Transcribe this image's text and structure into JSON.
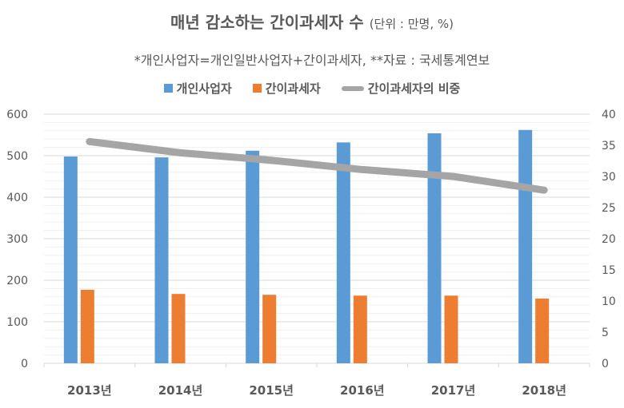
{
  "chart_data": {
    "type": "bar+line",
    "title": "매년 감소하는 간이과세자 수",
    "title_unit": "(단위 : 만명, %)",
    "subtitle": "*개인사업자=개인일반사업자+간이과세자, **자료 : 국세통계연보",
    "categories": [
      "2013년",
      "2014년",
      "2015년",
      "2016년",
      "2017년",
      "2018년"
    ],
    "series": [
      {
        "name": "개인사업자",
        "type": "bar",
        "axis": "left",
        "color": "#5B9BD5",
        "values": [
          498,
          496,
          512,
          532,
          554,
          562
        ]
      },
      {
        "name": "간이과세자",
        "type": "bar",
        "axis": "left",
        "color": "#ED7D31",
        "values": [
          177,
          167,
          165,
          163,
          163,
          156
        ]
      },
      {
        "name": "간이과세자의 비중",
        "type": "line",
        "axis": "right",
        "color": "#A5A5A5",
        "values": [
          35.6,
          33.8,
          32.6,
          31.1,
          30.0,
          27.8
        ]
      }
    ],
    "left_axis": {
      "ylim": [
        0,
        600
      ],
      "ticks": [
        "0",
        "100",
        "200",
        "300",
        "400",
        "500",
        "600"
      ]
    },
    "right_axis": {
      "ylim": [
        0,
        40
      ],
      "ticks": [
        "0",
        "5",
        "10",
        "15",
        "20",
        "25",
        "30",
        "35",
        "40"
      ]
    },
    "grid": true,
    "legend": "top"
  }
}
